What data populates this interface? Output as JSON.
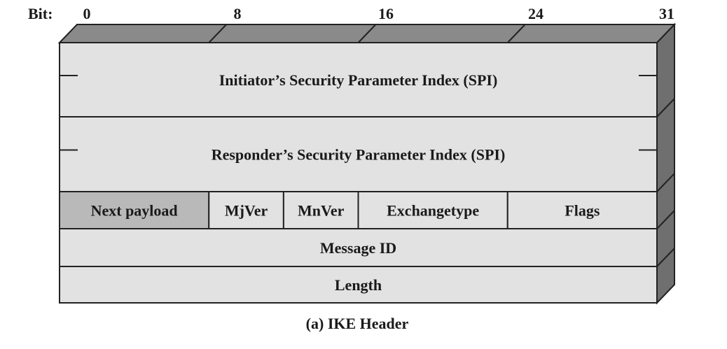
{
  "bit_ruler": {
    "prefix": "Bit:",
    "marks": [
      "0",
      "8",
      "16",
      "24",
      "31"
    ]
  },
  "rows": [
    {
      "fields": [
        {
          "label": "Initiator’s Security Parameter Index (SPI)",
          "shaded": false
        }
      ],
      "has_side_ticks": true
    },
    {
      "fields": [
        {
          "label": "Responder’s Security Parameter Index (SPI)",
          "shaded": false
        }
      ],
      "has_side_ticks": true
    },
    {
      "fields": [
        {
          "label": "Next payload",
          "shaded": true
        },
        {
          "label": "MjVer",
          "shaded": false
        },
        {
          "label": "MnVer",
          "shaded": false
        },
        {
          "label": "Exchangetype",
          "shaded": false
        },
        {
          "label": "Flags",
          "shaded": false
        }
      ],
      "has_side_ticks": false
    },
    {
      "fields": [
        {
          "label": "Message ID",
          "shaded": false
        }
      ],
      "has_side_ticks": false
    },
    {
      "fields": [
        {
          "label": "Length",
          "shaded": false
        }
      ],
      "has_side_ticks": false
    }
  ],
  "caption": "(a) IKE Header",
  "colors": {
    "face": "#e2e2e2",
    "shaded_field": "#b9b9b9",
    "top_face": "#8a8a8a",
    "side_face": "#6f6f6f",
    "stroke": "#222222"
  }
}
